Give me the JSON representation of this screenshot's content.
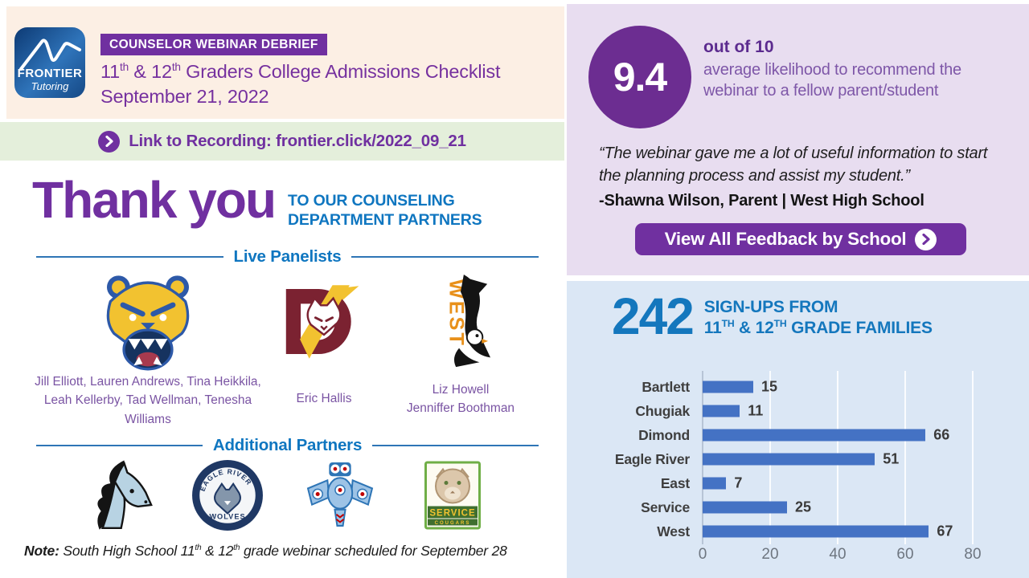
{
  "header": {
    "badge": "COUNSELOR WEBINAR DEBRIEF",
    "title_parts": {
      "t1": "11",
      "s1": "th",
      "t2": " & 12",
      "s2": "th",
      "t3": " Graders College Admissions Checklist"
    },
    "date": "September 21, 2022",
    "logo": {
      "line1": "FRONTIER",
      "line2": "Tutoring"
    }
  },
  "recording": {
    "label": "Link to Recording: frontier.click/2022_09_21"
  },
  "thanks": {
    "big": "Thank you",
    "sub1": "TO OUR COUNSELING",
    "sub2": "DEPARTMENT PARTNERS"
  },
  "panelists": {
    "heading": "Live Panelists",
    "items": [
      {
        "logo_icon": "bartlett-bear-mascot",
        "names": "Jill Elliott, Lauren Andrews, Tina Heikkila, Leah Kellerby, Tad Wellman, Tenesha Williams"
      },
      {
        "logo_icon": "dimond-lynx-mascot",
        "logo_text": "D",
        "names": "Eric Hallis"
      },
      {
        "logo_icon": "west-eagle-mascot",
        "logo_text": "WEST",
        "names_lines": [
          "Liz Howell",
          "Jenniffer Boothman"
        ]
      }
    ]
  },
  "partners": {
    "heading": "Additional Partners",
    "items": [
      {
        "logo_icon": "chugiak-mustang-mascot"
      },
      {
        "logo_icon": "eagle-river-wolves-mascot",
        "logo_text_top": "EAGLE RIVER",
        "logo_text_bottom": "WOLVES"
      },
      {
        "logo_icon": "east-thunderbird-mascot"
      },
      {
        "logo_icon": "service-cougars-mascot",
        "logo_text_top": "SERVICE",
        "logo_text_bottom": "COUGARS"
      }
    ]
  },
  "note": {
    "label": "Note:",
    "parts": {
      "t1": " South High School 11",
      "s1": "th",
      "t2": " & 12",
      "s2": "th",
      "t3": " grade webinar scheduled for September 28"
    }
  },
  "feedback": {
    "score": "9.4",
    "out_of": "out of 10",
    "desc": "average likelihood to recommend the webinar to a fellow parent/student",
    "quote": "“The webinar gave me a lot of useful information to start the planning process and assist my student.”",
    "attribution": "-Shawna Wilson, Parent | West High School",
    "button_label": "View All Feedback by School"
  },
  "signups": {
    "count": "242",
    "line1": "SIGN-UPS FROM",
    "line2_parts": {
      "t1": "11",
      "s1": "TH",
      "t2": " & 12",
      "s2": "TH",
      "t3": " GRADE FAMILIES"
    }
  },
  "chart_data": {
    "type": "bar",
    "orientation": "horizontal",
    "title": "242 SIGN-UPS FROM 11TH & 12TH GRADE FAMILIES",
    "categories": [
      "Bartlett",
      "Chugiak",
      "Dimond",
      "Eagle River",
      "East",
      "Service",
      "West"
    ],
    "values": [
      15,
      11,
      66,
      51,
      7,
      25,
      67
    ],
    "xlim": [
      0,
      80
    ],
    "xticks": [
      0,
      20,
      40,
      60,
      80
    ],
    "grid": true,
    "bar_color": "#4472c4"
  },
  "colors": {
    "accent_purple": "#7030a0",
    "heading_blue": "#0f76c0",
    "bar_blue": "#4472c4",
    "panel_cream": "#fcefe4",
    "panel_green": "#e4efdb",
    "panel_lavender": "#e8ddf0",
    "panel_lightblue": "#dbe7f5"
  }
}
